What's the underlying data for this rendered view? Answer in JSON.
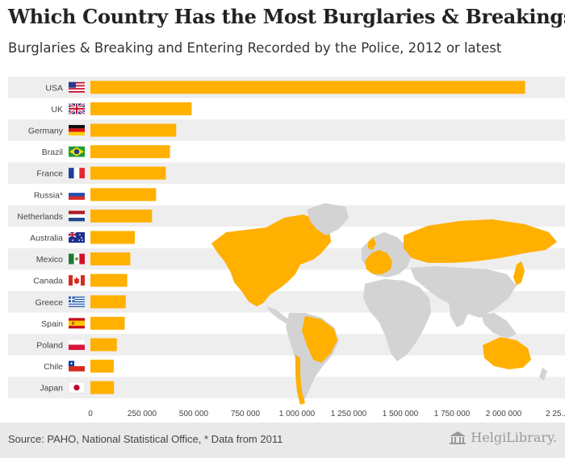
{
  "header": {
    "title": "Which Country Has the Most Burglaries & Breakings?",
    "subtitle": "Burglaries & Breaking and Entering Recorded by the Police, 2012 or latest"
  },
  "footer": {
    "source": "Source: PAHO, National Statistical Office, * Data from 2011",
    "logo_text": "HelgiLibrary."
  },
  "colors": {
    "bar": "#FFB000",
    "stripe": "#eeeeee",
    "map_land": "#d3d3d3"
  },
  "chart_data": {
    "type": "bar",
    "orientation": "horizontal",
    "categories": [
      "USA",
      "UK",
      "Germany",
      "Brazil",
      "France",
      "Russia*",
      "Netherlands",
      "Australia",
      "Mexico",
      "Canada",
      "Greece",
      "Spain",
      "Poland",
      "Chile",
      "Japan"
    ],
    "flags": [
      "us-flag-icon",
      "uk-flag-icon",
      "germany-flag-icon",
      "brazil-flag-icon",
      "france-flag-icon",
      "russia-flag-icon",
      "netherlands-flag-icon",
      "australia-flag-icon",
      "mexico-flag-icon",
      "canada-flag-icon",
      "greece-flag-icon",
      "spain-flag-icon",
      "poland-flag-icon",
      "chile-flag-icon",
      "japan-flag-icon"
    ],
    "values": [
      2103787,
      490000,
      415000,
      385000,
      365000,
      318000,
      298000,
      215000,
      193000,
      178000,
      171000,
      166000,
      128000,
      113000,
      114000
    ],
    "xlim": [
      0,
      2250000
    ],
    "xticks": [
      0,
      250000,
      500000,
      750000,
      1000000,
      1250000,
      1500000,
      1750000,
      2000000,
      2250000
    ],
    "xtick_labels": [
      "0",
      "250 000",
      "500 000",
      "750 000",
      "1 000 000",
      "1 250 000",
      "1 500 000",
      "1 750 000",
      "2 000 000",
      "2 25..."
    ],
    "grid": false,
    "legend": "none",
    "background": "world map highlighting ranked countries"
  }
}
